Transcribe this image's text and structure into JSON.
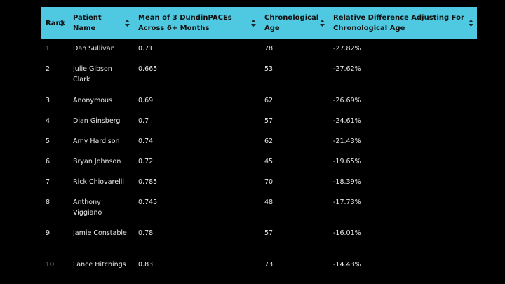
{
  "table": {
    "headers": [
      {
        "label": "Rank"
      },
      {
        "label": "Patient Name"
      },
      {
        "label": "Mean of 3 DundinPACEs Across 6+ Months"
      },
      {
        "label": "Chronological Age"
      },
      {
        "label": "Relative Difference Adjusting For Chronological Age"
      }
    ],
    "rows": [
      {
        "rank": "1",
        "name": "Dan Sullivan",
        "mean": "0.71",
        "age": "78",
        "diff": "-27.82%"
      },
      {
        "rank": "2",
        "name": "Julie Gibson Clark",
        "mean": "0.665",
        "age": "53",
        "diff": "-27.62%"
      },
      {
        "rank": "3",
        "name": "Anonymous",
        "mean": "0.69",
        "age": "62",
        "diff": "-26.69%"
      },
      {
        "rank": "4",
        "name": "Dian Ginsberg",
        "mean": "0.7",
        "age": "57",
        "diff": "-24.61%"
      },
      {
        "rank": "5",
        "name": "Amy Hardison",
        "mean": "0.74",
        "age": "62",
        "diff": "-21.43%"
      },
      {
        "rank": "6",
        "name": "Bryan Johnson",
        "mean": "0.72",
        "age": "45",
        "diff": "-19.65%"
      },
      {
        "rank": "7",
        "name": "Rick Chiovarelli",
        "mean": "0.785",
        "age": "70",
        "diff": "-18.39%"
      },
      {
        "rank": "8",
        "name": "Anthony Viggiano",
        "mean": "0.745",
        "age": "48",
        "diff": "-17.73%"
      },
      {
        "rank": "9",
        "name": "Jamie Constable",
        "mean": "0.78",
        "age": "57",
        "diff": "-16.01%"
      },
      {
        "rank": "10",
        "name": "Lance Hitchings",
        "mean": "0.83",
        "age": "73",
        "diff": "-14.43%"
      }
    ]
  },
  "colors": {
    "header_background": "#4ec9e1",
    "header_text": "#111111",
    "page_background": "#000000",
    "body_text": "#e8e8e8"
  },
  "icons": {
    "sort": "sort-updown-icon"
  }
}
